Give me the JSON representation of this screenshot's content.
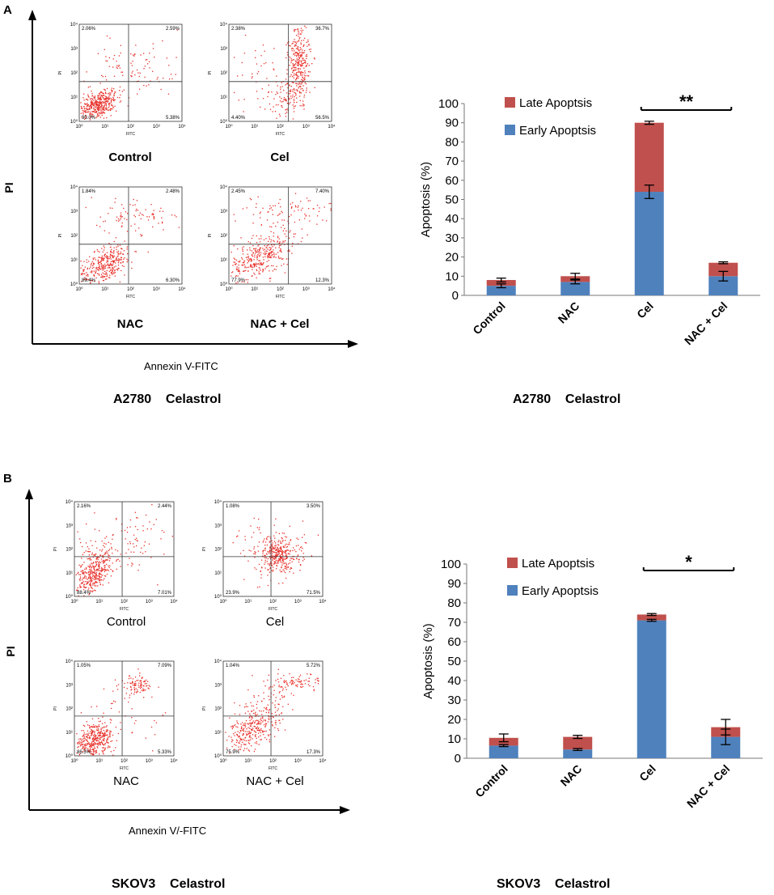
{
  "colors": {
    "late": "#C0504D",
    "early": "#4F81BD",
    "dots": "#e8302a"
  },
  "panels": [
    {
      "letter": "A",
      "y_axis_label": "PI",
      "x_axis_label": "Annexin V-FITC",
      "flow_caption": "A2780    Celastrol",
      "chart_caption": "A2780    Celastrol",
      "plots": [
        {
          "name": "Control",
          "quadrants": [
            "2.06%",
            "2.59%",
            "90.0%",
            "5.38%"
          ]
        },
        {
          "name": "Cel",
          "quadrants": [
            "2.38%",
            "36.7%",
            "4.40%",
            "56.5%"
          ]
        },
        {
          "name": "NAC",
          "quadrants": [
            "1.84%",
            "2.48%",
            "89.4%",
            "6.30%"
          ]
        },
        {
          "name": "NAC + Cel",
          "quadrants": [
            "2.45%",
            "7.40%",
            "77.9%",
            "12.3%"
          ]
        }
      ]
    },
    {
      "letter": "B",
      "y_axis_label": "PI",
      "x_axis_label": "Annexin V/-FITC",
      "flow_caption": "SKOV3    Celastrol",
      "chart_caption": "SKOV3    Celastrol",
      "plots": [
        {
          "name": "Control",
          "quadrants": [
            "2.16%",
            "2.44%",
            "88.4%",
            "7.01%"
          ]
        },
        {
          "name": "Cel",
          "quadrants": [
            "1.08%",
            "3.50%",
            "23.9%",
            "71.5%"
          ]
        },
        {
          "name": "NAC",
          "quadrants": [
            "1.05%",
            "7.09%",
            "86.5%",
            "5.33%"
          ]
        },
        {
          "name": "NAC + Cel",
          "quadrants": [
            "1.04%",
            "5.72%",
            "75.9%",
            "17.3%"
          ]
        }
      ]
    }
  ],
  "flow_axis": {
    "x_label": "FITC",
    "y_label": "PI",
    "ticks": [
      "10⁰",
      "10¹",
      "10²",
      "10³",
      "10⁴"
    ]
  },
  "chart_data": [
    {
      "type": "bar",
      "stacked": true,
      "title": "",
      "xlabel": "",
      "ylabel": "Apoptosis (%)",
      "ylim": [
        0,
        100
      ],
      "yticks": [
        0,
        10,
        20,
        30,
        40,
        50,
        60,
        70,
        80,
        90,
        100
      ],
      "categories": [
        "Control",
        "NAC",
        "Cel",
        "NAC + Cel"
      ],
      "series": [
        {
          "name": "Early Apoptsis",
          "values": [
            5,
            7,
            54,
            10
          ],
          "errors": [
            1,
            1,
            3.5,
            2.5
          ]
        },
        {
          "name": "Late Apoptsis",
          "values": [
            3,
            3,
            36,
            7
          ],
          "errors": [
            1,
            1.5,
            0.8,
            0.5
          ]
        }
      ],
      "legend_order": [
        "Late Apoptsis",
        "Early Apoptsis"
      ],
      "significance": {
        "from": "Cel",
        "to": "NAC + Cel",
        "label": "**"
      }
    },
    {
      "type": "bar",
      "stacked": true,
      "title": "",
      "xlabel": "",
      "ylabel": "Apoptosis (%)",
      "ylim": [
        0,
        100
      ],
      "yticks": [
        0,
        10,
        20,
        30,
        40,
        50,
        60,
        70,
        80,
        90,
        100
      ],
      "categories": [
        "Control",
        "NAC",
        "Cel",
        "NAC + Cel"
      ],
      "series": [
        {
          "name": "Early Apoptsis",
          "values": [
            6.5,
            4.5,
            71,
            11
          ],
          "errors": [
            0.5,
            0.5,
            0.5,
            4
          ]
        },
        {
          "name": "Late Apoptsis",
          "values": [
            4,
            6.5,
            3,
            5
          ],
          "errors": [
            2,
            0.8,
            0.5,
            4
          ]
        }
      ],
      "legend_order": [
        "Late Apoptsis",
        "Early Apoptsis"
      ],
      "significance": {
        "from": "Cel",
        "to": "NAC + Cel",
        "label": "*"
      }
    }
  ]
}
